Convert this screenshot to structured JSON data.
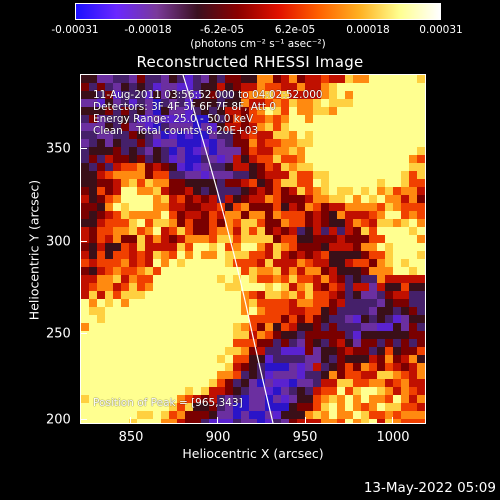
{
  "colorbar": {
    "ticks": [
      "-0.00031",
      "-0.00018",
      "-6.2e-05",
      "6.2e-05",
      "0.00018",
      "0.00031"
    ],
    "units": "(photons cm⁻² s⁻¹ asec⁻²)",
    "colors": [
      "#1b10ff",
      "#6a28ff",
      "#7a3a9a",
      "#3a1020",
      "#8a0000",
      "#e01000",
      "#ff6000",
      "#ffb020",
      "#ffff90",
      "#ffffff"
    ]
  },
  "title": "Reconstructed RHESSI Image",
  "overlay": {
    "line1": "11-Aug-2011 03:56:52.000 to 04:02:52.000",
    "line2": "Detectors: 3F 4F 5F 6F 7F 8F, Att 0",
    "line3": "Energy Range: 25.0 - 50.0 keV",
    "line4": "Clean    Total counts: 8.20E+03",
    "peak": "Position of Peak = [965,343]"
  },
  "axes": {
    "xlabel": "Heliocentric X (arcsec)",
    "ylabel": "Heliocentric Y (arcsec)",
    "xticks": [
      "850",
      "900",
      "950",
      "1000"
    ],
    "yticks": [
      "350",
      "300",
      "250",
      "200"
    ]
  },
  "datestamp": "13-May-2022 05:09"
}
